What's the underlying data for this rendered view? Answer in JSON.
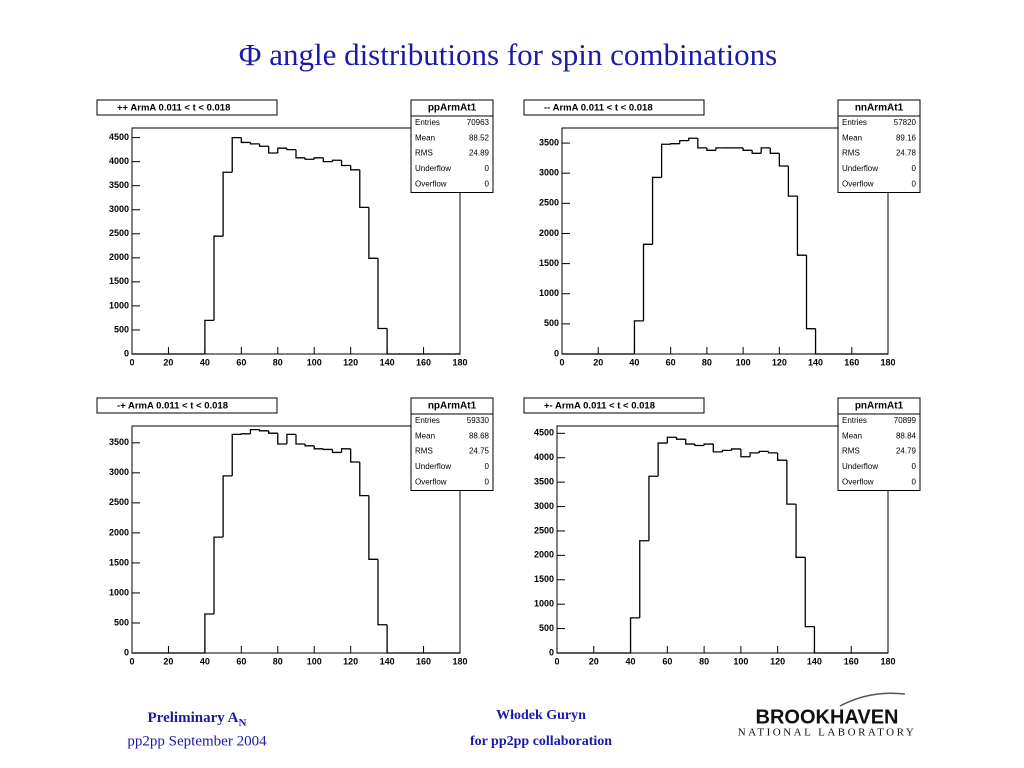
{
  "slide_title": "Φ angle distributions for spin combinations",
  "footer": {
    "left_line1": "Preliminary A",
    "left_line1_sub": "N",
    "left_line2": "pp2pp September 2004",
    "center_line1": "Włodek Guryn",
    "center_line2": "for pp2pp collaboration",
    "logo_line1": "BROOKHAVEN",
    "logo_line2": "NATIONAL LABORATORY"
  },
  "chart_data": [
    {
      "type": "histogram",
      "title": "++ ArmA 0.011 < t < 0.018",
      "color": "#000000",
      "bins": [
        0,
        5,
        10,
        15,
        20,
        25,
        30,
        35,
        40,
        45,
        50,
        55,
        60,
        65,
        70,
        75,
        80,
        85,
        90,
        95,
        100,
        105,
        110,
        115,
        120,
        125,
        130,
        135,
        140,
        145,
        150,
        155,
        160,
        165,
        170,
        175,
        180
      ],
      "counts": [
        0,
        0,
        0,
        0,
        0,
        0,
        0,
        0,
        700,
        2450,
        3780,
        4500,
        4400,
        4370,
        4320,
        4180,
        4280,
        4250,
        4080,
        4050,
        4080,
        4000,
        4030,
        3920,
        3830,
        3050,
        1990,
        530,
        0,
        0,
        0,
        0,
        0,
        0,
        0,
        0
      ],
      "xlim": [
        0,
        180
      ],
      "xticks": [
        0,
        20,
        40,
        60,
        80,
        100,
        120,
        140,
        160,
        180
      ],
      "ylim": [
        0,
        4700
      ],
      "yticks": [
        0,
        500,
        1000,
        1500,
        2000,
        2500,
        3000,
        3500,
        4000,
        4500
      ],
      "stats": {
        "name": "ppArmAt1",
        "labels": [
          "Entries",
          "Mean",
          "RMS",
          "Underflow",
          "Overflow"
        ],
        "values": [
          70963,
          88.52,
          24.89,
          0,
          0
        ]
      }
    },
    {
      "type": "histogram",
      "title": "-- ArmA 0.011 < t < 0.018",
      "color": "#000000",
      "bins": [
        0,
        5,
        10,
        15,
        20,
        25,
        30,
        35,
        40,
        45,
        50,
        55,
        60,
        65,
        70,
        75,
        80,
        85,
        90,
        95,
        100,
        105,
        110,
        115,
        120,
        125,
        130,
        135,
        140,
        145,
        150,
        155,
        160,
        165,
        170,
        175,
        180
      ],
      "counts": [
        0,
        0,
        0,
        0,
        0,
        0,
        0,
        0,
        550,
        1820,
        2930,
        3480,
        3490,
        3540,
        3580,
        3420,
        3380,
        3420,
        3420,
        3420,
        3380,
        3330,
        3420,
        3330,
        3120,
        2620,
        1640,
        420,
        0,
        0,
        0,
        0,
        0,
        0,
        0,
        0
      ],
      "xlim": [
        0,
        180
      ],
      "xticks": [
        0,
        20,
        40,
        60,
        80,
        100,
        120,
        140,
        160,
        180
      ],
      "ylim": [
        0,
        3750
      ],
      "yticks": [
        0,
        500,
        1000,
        1500,
        2000,
        2500,
        3000,
        3500
      ],
      "stats": {
        "name": "nnArmAt1",
        "labels": [
          "Entries",
          "Mean",
          "RMS",
          "Underflow",
          "Overflow"
        ],
        "values": [
          57820,
          89.16,
          24.78,
          0,
          0
        ]
      }
    },
    {
      "type": "histogram",
      "title": "-+ ArmA 0.011 < t < 0.018",
      "color": "#000000",
      "bins": [
        0,
        5,
        10,
        15,
        20,
        25,
        30,
        35,
        40,
        45,
        50,
        55,
        60,
        65,
        70,
        75,
        80,
        85,
        90,
        95,
        100,
        105,
        110,
        115,
        120,
        125,
        130,
        135,
        140,
        145,
        150,
        155,
        160,
        165,
        170,
        175,
        180
      ],
      "counts": [
        0,
        0,
        0,
        0,
        0,
        0,
        0,
        0,
        650,
        1930,
        2950,
        3640,
        3650,
        3720,
        3700,
        3660,
        3480,
        3640,
        3480,
        3450,
        3400,
        3390,
        3340,
        3400,
        3180,
        2620,
        1560,
        470,
        0,
        0,
        0,
        0,
        0,
        0,
        0,
        0
      ],
      "xlim": [
        0,
        180
      ],
      "xticks": [
        0,
        20,
        40,
        60,
        80,
        100,
        120,
        140,
        160,
        180
      ],
      "ylim": [
        0,
        3780
      ],
      "yticks": [
        0,
        500,
        1000,
        1500,
        2000,
        2500,
        3000,
        3500
      ],
      "stats": {
        "name": "npArmAt1",
        "labels": [
          "Entries",
          "Mean",
          "RMS",
          "Underflow",
          "Overflow"
        ],
        "values": [
          59330,
          88.68,
          24.75,
          0,
          0
        ]
      }
    },
    {
      "type": "histogram",
      "title": "+- ArmA 0.011 < t < 0.018",
      "color": "#000000",
      "bins": [
        0,
        5,
        10,
        15,
        20,
        25,
        30,
        35,
        40,
        45,
        50,
        55,
        60,
        65,
        70,
        75,
        80,
        85,
        90,
        95,
        100,
        105,
        110,
        115,
        120,
        125,
        130,
        135,
        140,
        145,
        150,
        155,
        160,
        165,
        170,
        175,
        180
      ],
      "counts": [
        0,
        0,
        0,
        0,
        0,
        0,
        0,
        0,
        720,
        2300,
        3620,
        4300,
        4420,
        4380,
        4280,
        4250,
        4280,
        4120,
        4150,
        4180,
        4020,
        4100,
        4130,
        4100,
        3950,
        3050,
        1960,
        540,
        0,
        0,
        0,
        0,
        0,
        0,
        0,
        0
      ],
      "xlim": [
        0,
        180
      ],
      "xticks": [
        0,
        20,
        40,
        60,
        80,
        100,
        120,
        140,
        160,
        180
      ],
      "ylim": [
        0,
        4650
      ],
      "yticks": [
        0,
        500,
        1000,
        1500,
        2000,
        2500,
        3000,
        3500,
        4000,
        4500
      ],
      "stats": {
        "name": "pnArmAt1",
        "labels": [
          "Entries",
          "Mean",
          "RMS",
          "Underflow",
          "Overflow"
        ],
        "values": [
          70899,
          88.84,
          24.79,
          0,
          0
        ]
      }
    }
  ]
}
